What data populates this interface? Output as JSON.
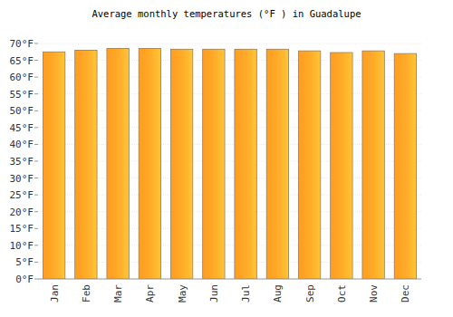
{
  "chart_data": {
    "type": "bar",
    "title": "Average monthly temperatures (°F ) in Guadalupe",
    "categories": [
      "Jan",
      "Feb",
      "Mar",
      "Apr",
      "May",
      "Jun",
      "Jul",
      "Aug",
      "Sep",
      "Oct",
      "Nov",
      "Dec"
    ],
    "values": [
      67.5,
      68,
      68.5,
      68.5,
      68.3,
      68.3,
      68.3,
      68.3,
      67.8,
      67.3,
      67.8,
      67
    ],
    "color": "#ffa52e",
    "ylim": [
      0,
      70
    ],
    "yticks": [
      {
        "value": 0,
        "label": "0°F"
      },
      {
        "value": 5,
        "label": "5°F"
      },
      {
        "value": 10,
        "label": "10°F"
      },
      {
        "value": 15,
        "label": "15°F"
      },
      {
        "value": 20,
        "label": "20°F"
      },
      {
        "value": 25,
        "label": "25°F"
      },
      {
        "value": 30,
        "label": "30°F"
      },
      {
        "value": 35,
        "label": "35°F"
      },
      {
        "value": 40,
        "label": "40°F"
      },
      {
        "value": 45,
        "label": "45°F"
      },
      {
        "value": 50,
        "label": "50°F"
      },
      {
        "value": 55,
        "label": "55°F"
      },
      {
        "value": 60,
        "label": "60°F"
      },
      {
        "value": 65,
        "label": "65°F"
      },
      {
        "value": 70,
        "label": "70°F"
      }
    ],
    "grid": true
  }
}
